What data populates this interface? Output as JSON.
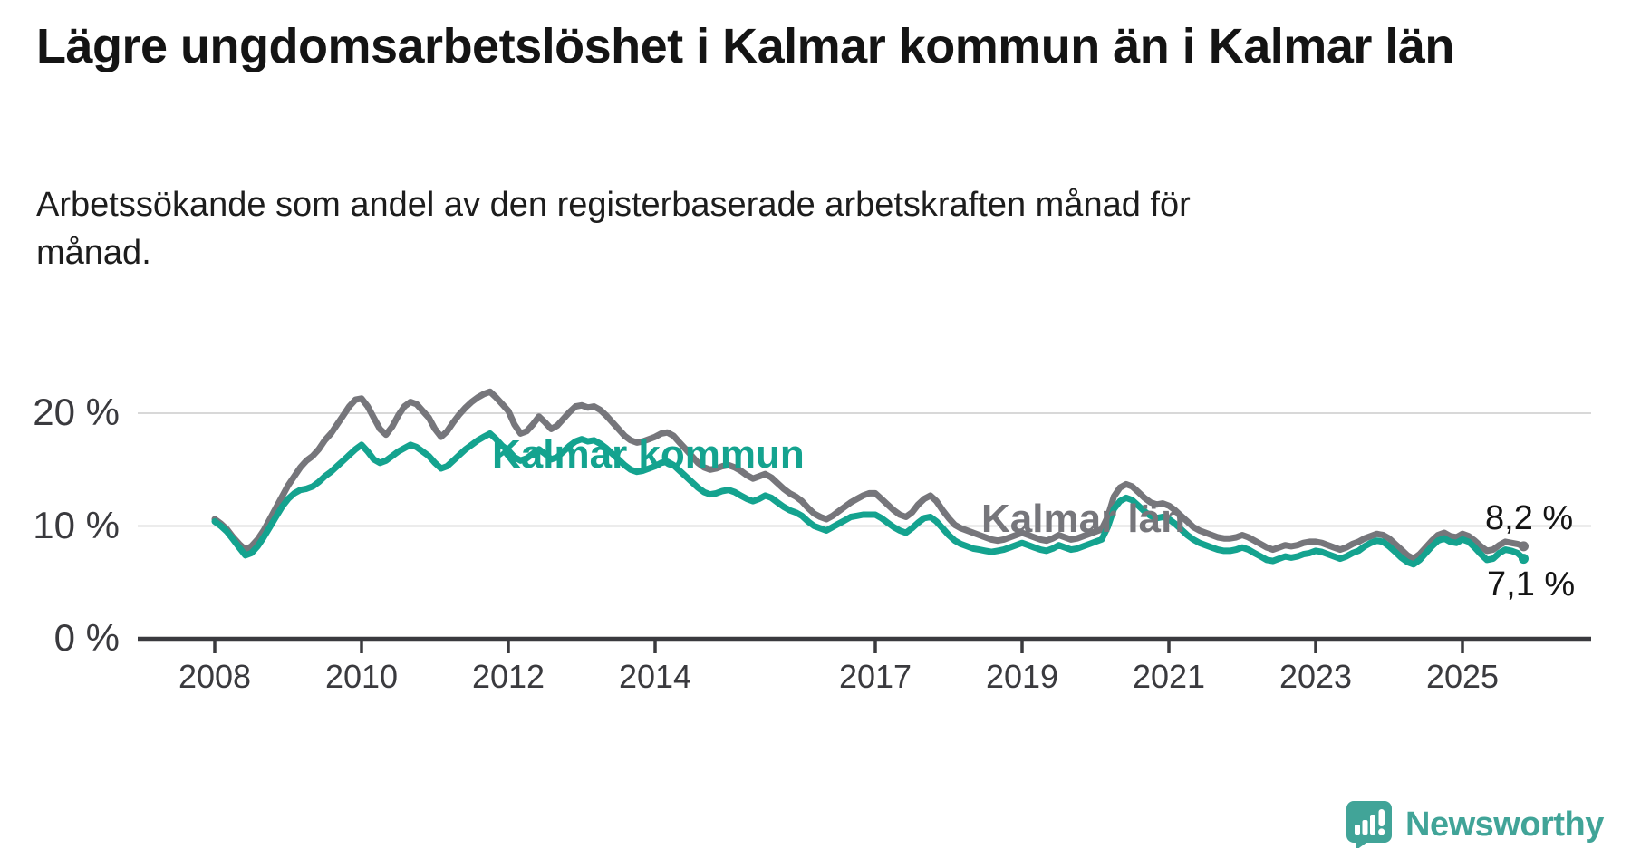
{
  "title": "Lägre ungdomsarbetslöshet i Kalmar kommun än i Kalmar län",
  "subtitle": "Arbetssökande som andel av den registerbaserade arbetskraften månad för månad.",
  "branding": {
    "logo_text": "Newsworthy",
    "logo_color": "#41a498",
    "logo_icon": "bar-chart-speech-bubble"
  },
  "chart_data": {
    "type": "line",
    "unit": "%",
    "grid": "horizontal-only",
    "legend_position": "inline-labels-on-lines",
    "x_start": "2008-01",
    "x_end": "2025-11",
    "x_resolution": "monthly",
    "x_tick_labels": [
      "2008",
      "2010",
      "2012",
      "2014",
      "2017",
      "2019",
      "2021",
      "2023",
      "2025"
    ],
    "y_ticks": [
      {
        "label": "0 %",
        "value": 0
      },
      {
        "label": "10 %",
        "value": 10
      },
      {
        "label": "20 %",
        "value": 20
      }
    ],
    "ylim": [
      0,
      24
    ],
    "series": [
      {
        "name": "Kalmar län",
        "color": "#76767b",
        "end_label": "8,2 %",
        "end_value": 8.2,
        "values": [
          10.6,
          10.2,
          9.7,
          9.0,
          8.4,
          7.9,
          8.2,
          8.8,
          9.6,
          10.6,
          11.6,
          12.6,
          13.6,
          14.4,
          15.2,
          15.8,
          16.2,
          16.8,
          17.6,
          18.2,
          19.0,
          19.8,
          20.6,
          21.2,
          21.3,
          20.6,
          19.6,
          18.6,
          18.1,
          18.8,
          19.8,
          20.6,
          21.0,
          20.8,
          20.2,
          19.6,
          18.6,
          17.9,
          18.4,
          19.2,
          19.9,
          20.5,
          21.0,
          21.4,
          21.7,
          21.9,
          21.4,
          20.8,
          20.2,
          19.0,
          18.2,
          18.4,
          19.0,
          19.7,
          19.2,
          18.6,
          18.9,
          19.5,
          20.1,
          20.6,
          20.7,
          20.5,
          20.6,
          20.3,
          19.8,
          19.2,
          18.6,
          18.0,
          17.6,
          17.4,
          17.5,
          17.7,
          17.9,
          18.2,
          18.3,
          18.0,
          17.4,
          16.8,
          16.2,
          15.6,
          15.2,
          15.0,
          15.1,
          15.3,
          15.4,
          15.2,
          14.9,
          14.5,
          14.2,
          14.4,
          14.6,
          14.3,
          13.8,
          13.3,
          12.9,
          12.6,
          12.2,
          11.6,
          11.1,
          10.8,
          10.6,
          10.9,
          11.3,
          11.7,
          12.1,
          12.4,
          12.7,
          12.9,
          12.9,
          12.4,
          11.9,
          11.4,
          11.0,
          10.8,
          11.2,
          11.9,
          12.4,
          12.7,
          12.2,
          11.4,
          10.7,
          10.1,
          9.8,
          9.6,
          9.4,
          9.2,
          9.0,
          8.8,
          8.7,
          8.8,
          9.0,
          9.2,
          9.4,
          9.2,
          9.0,
          8.8,
          8.7,
          8.9,
          9.2,
          9.0,
          8.8,
          8.9,
          9.1,
          9.3,
          9.5,
          9.7,
          10.8,
          12.6,
          13.4,
          13.7,
          13.5,
          13.0,
          12.5,
          12.1,
          11.9,
          12.0,
          11.8,
          11.4,
          10.9,
          10.4,
          9.9,
          9.6,
          9.4,
          9.2,
          9.0,
          8.9,
          8.9,
          9.0,
          9.2,
          9.0,
          8.7,
          8.4,
          8.1,
          7.9,
          8.1,
          8.3,
          8.2,
          8.3,
          8.5,
          8.6,
          8.6,
          8.5,
          8.3,
          8.1,
          7.9,
          8.1,
          8.4,
          8.6,
          8.9,
          9.1,
          9.3,
          9.2,
          8.9,
          8.4,
          7.9,
          7.4,
          7.1,
          7.5,
          8.1,
          8.7,
          9.2,
          9.4,
          9.1,
          9.0,
          9.3,
          9.1,
          8.7,
          8.2,
          7.8,
          7.9,
          8.3,
          8.6,
          8.5,
          8.4,
          8.2
        ]
      },
      {
        "name": "Kalmar kommun",
        "color": "#14a38f",
        "end_label": "7,1 %",
        "end_value": 7.1,
        "values": [
          10.4,
          10.0,
          9.5,
          8.8,
          8.1,
          7.4,
          7.6,
          8.2,
          9.0,
          9.9,
          10.8,
          11.7,
          12.4,
          12.9,
          13.2,
          13.3,
          13.5,
          13.9,
          14.4,
          14.8,
          15.3,
          15.8,
          16.3,
          16.8,
          17.2,
          16.6,
          15.9,
          15.6,
          15.8,
          16.2,
          16.6,
          16.9,
          17.2,
          17.0,
          16.6,
          16.2,
          15.6,
          15.1,
          15.3,
          15.8,
          16.3,
          16.8,
          17.2,
          17.6,
          17.9,
          18.2,
          17.7,
          17.1,
          16.7,
          16.1,
          15.8,
          16.0,
          16.4,
          16.8,
          16.4,
          15.9,
          16.1,
          16.6,
          17.1,
          17.5,
          17.7,
          17.5,
          17.6,
          17.3,
          16.9,
          16.4,
          15.9,
          15.4,
          15.0,
          14.8,
          14.9,
          15.1,
          15.3,
          15.6,
          15.7,
          15.4,
          14.9,
          14.4,
          13.9,
          13.4,
          13.0,
          12.8,
          12.9,
          13.1,
          13.2,
          13.0,
          12.7,
          12.4,
          12.2,
          12.4,
          12.7,
          12.5,
          12.1,
          11.7,
          11.4,
          11.2,
          10.9,
          10.4,
          10.0,
          9.8,
          9.6,
          9.9,
          10.2,
          10.5,
          10.8,
          10.9,
          11.0,
          11.0,
          11.0,
          10.7,
          10.3,
          9.9,
          9.6,
          9.4,
          9.8,
          10.3,
          10.7,
          10.8,
          10.4,
          9.8,
          9.2,
          8.7,
          8.4,
          8.2,
          8.0,
          7.9,
          7.8,
          7.7,
          7.8,
          7.9,
          8.1,
          8.3,
          8.5,
          8.3,
          8.1,
          7.9,
          7.8,
          8.0,
          8.3,
          8.1,
          7.9,
          8.0,
          8.2,
          8.4,
          8.6,
          8.8,
          9.9,
          11.5,
          12.2,
          12.5,
          12.3,
          11.8,
          11.3,
          10.9,
          10.7,
          10.8,
          10.6,
          10.2,
          9.7,
          9.2,
          8.8,
          8.5,
          8.3,
          8.1,
          7.9,
          7.8,
          7.8,
          7.9,
          8.1,
          7.9,
          7.6,
          7.3,
          7.0,
          6.9,
          7.1,
          7.3,
          7.2,
          7.3,
          7.5,
          7.6,
          7.8,
          7.7,
          7.5,
          7.3,
          7.1,
          7.3,
          7.6,
          7.8,
          8.2,
          8.5,
          8.7,
          8.6,
          8.2,
          7.7,
          7.2,
          6.8,
          6.6,
          7.0,
          7.6,
          8.2,
          8.7,
          8.9,
          8.6,
          8.5,
          8.8,
          8.6,
          8.1,
          7.5,
          7.0,
          7.1,
          7.6,
          7.9,
          7.8,
          7.6,
          7.1
        ]
      }
    ]
  }
}
